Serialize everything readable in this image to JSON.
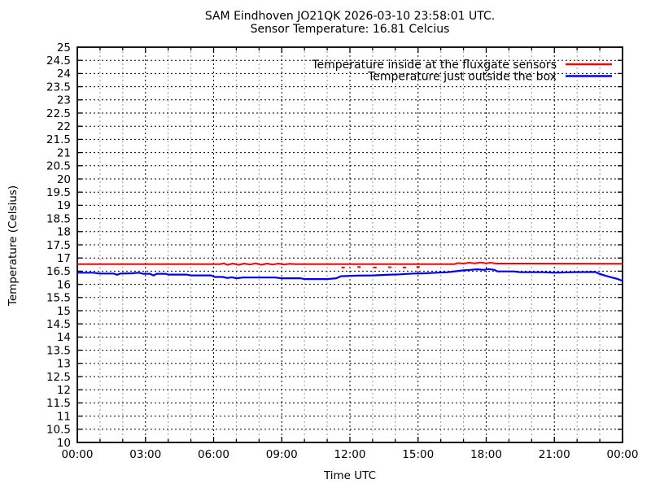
{
  "header": {
    "title_line1": "SAM Eindhoven JO21QK 2026-03-10 23:58:01 UTC.",
    "title_line2": "Sensor Temperature: 16.81 Celcius"
  },
  "chart_data": {
    "type": "line",
    "title": "SAM Eindhoven JO21QK 2026-03-10 23:58:01 UTC.",
    "subtitle": "Sensor Temperature: 16.81 Celcius",
    "xlabel": "Time UTC",
    "ylabel": "Temperature (Celsius)",
    "xlim": [
      0,
      24
    ],
    "ylim": [
      10,
      25
    ],
    "x_major_step_hours": 3,
    "x_minor_step_hours": 1,
    "y_major_step": 0.5,
    "grid": true,
    "legend_position": "top-right-inside",
    "xtick_hours": [
      0,
      3,
      6,
      9,
      12,
      15,
      18,
      21,
      24
    ],
    "xtick_labels": [
      "00:00",
      "03:00",
      "06:00",
      "09:00",
      "12:00",
      "15:00",
      "18:00",
      "21:00",
      "00:00"
    ],
    "ytick_labels": [
      "25",
      "24.5",
      "24",
      "23.5",
      "23",
      "22.5",
      "22",
      "21.5",
      "21",
      "20.5",
      "20",
      "19.5",
      "19",
      "18.5",
      "18",
      "17.5",
      "17",
      "16.5",
      "16",
      "15.5",
      "15",
      "14.5",
      "14",
      "13.5",
      "13",
      "12.5",
      "12",
      "11.5",
      "11",
      "10.5",
      "10"
    ],
    "colors": {
      "border": "#000000",
      "grid_major": "#000000",
      "grid_minor": "#9a9a9a",
      "background": "#ffffff",
      "text": "#000000",
      "series_inside": "#ff0000",
      "series_outside": "#0000ff"
    },
    "series": [
      {
        "name": "Temperature inside at the fluxgate sensors",
        "color": "#ff0000",
        "width": 2,
        "points": [
          [
            0,
            16.77
          ],
          [
            6.3,
            16.77
          ],
          [
            6.45,
            16.8
          ],
          [
            6.6,
            16.74
          ],
          [
            6.85,
            16.79
          ],
          [
            7.1,
            16.74
          ],
          [
            7.35,
            16.79
          ],
          [
            7.6,
            16.75
          ],
          [
            7.85,
            16.8
          ],
          [
            8.1,
            16.74
          ],
          [
            8.35,
            16.79
          ],
          [
            8.6,
            16.75
          ],
          [
            8.85,
            16.79
          ],
          [
            9.1,
            16.75
          ],
          [
            9.35,
            16.78
          ],
          [
            9.6,
            16.77
          ],
          [
            16.6,
            16.77
          ],
          [
            16.75,
            16.81
          ],
          [
            17.0,
            16.79
          ],
          [
            17.25,
            16.82
          ],
          [
            17.5,
            16.8
          ],
          [
            17.75,
            16.83
          ],
          [
            18.0,
            16.8
          ],
          [
            18.2,
            16.82
          ],
          [
            18.45,
            16.79
          ],
          [
            24,
            16.78
          ]
        ]
      },
      {
        "name": "Temperature just outside the box",
        "color": "#0000ff",
        "width": 2.2,
        "points": [
          [
            0,
            16.44
          ],
          [
            0.7,
            16.44
          ],
          [
            1.0,
            16.41
          ],
          [
            1.6,
            16.41
          ],
          [
            1.75,
            16.36
          ],
          [
            1.9,
            16.41
          ],
          [
            2.4,
            16.42
          ],
          [
            2.7,
            16.44
          ],
          [
            2.9,
            16.4
          ],
          [
            3.2,
            16.4
          ],
          [
            3.35,
            16.34
          ],
          [
            3.5,
            16.4
          ],
          [
            3.9,
            16.4
          ],
          [
            4.0,
            16.37
          ],
          [
            4.8,
            16.37
          ],
          [
            5.0,
            16.34
          ],
          [
            5.9,
            16.34
          ],
          [
            6.05,
            16.28
          ],
          [
            6.4,
            16.28
          ],
          [
            6.6,
            16.24
          ],
          [
            6.8,
            16.27
          ],
          [
            7.0,
            16.23
          ],
          [
            7.3,
            16.26
          ],
          [
            8.0,
            16.26
          ],
          [
            8.7,
            16.26
          ],
          [
            9.0,
            16.23
          ],
          [
            9.8,
            16.23
          ],
          [
            10.0,
            16.2
          ],
          [
            11.0,
            16.2
          ],
          [
            11.4,
            16.23
          ],
          [
            11.6,
            16.31
          ],
          [
            12.3,
            16.33
          ],
          [
            13.0,
            16.34
          ],
          [
            13.6,
            16.36
          ],
          [
            14.2,
            16.38
          ],
          [
            14.8,
            16.41
          ],
          [
            15.3,
            16.42
          ],
          [
            15.8,
            16.44
          ],
          [
            16.3,
            16.46
          ],
          [
            16.7,
            16.5
          ],
          [
            17.0,
            16.53
          ],
          [
            17.3,
            16.55
          ],
          [
            17.6,
            16.57
          ],
          [
            17.9,
            16.55
          ],
          [
            18.1,
            16.58
          ],
          [
            18.35,
            16.55
          ],
          [
            18.5,
            16.49
          ],
          [
            19.2,
            16.49
          ],
          [
            19.5,
            16.46
          ],
          [
            20.5,
            16.46
          ],
          [
            21.0,
            16.44
          ],
          [
            21.8,
            16.46
          ],
          [
            22.8,
            16.47
          ],
          [
            22.95,
            16.41
          ],
          [
            23.2,
            16.34
          ],
          [
            23.5,
            16.27
          ],
          [
            23.8,
            16.2
          ],
          [
            24,
            16.13
          ]
        ]
      }
    ],
    "red_noise_dots": {
      "color": "#ff0000",
      "points": [
        [
          11.7,
          16.64
        ],
        [
          12.4,
          16.66
        ],
        [
          13.1,
          16.64
        ],
        [
          13.75,
          16.65
        ],
        [
          14.4,
          16.64
        ],
        [
          15.0,
          16.66
        ]
      ]
    }
  }
}
